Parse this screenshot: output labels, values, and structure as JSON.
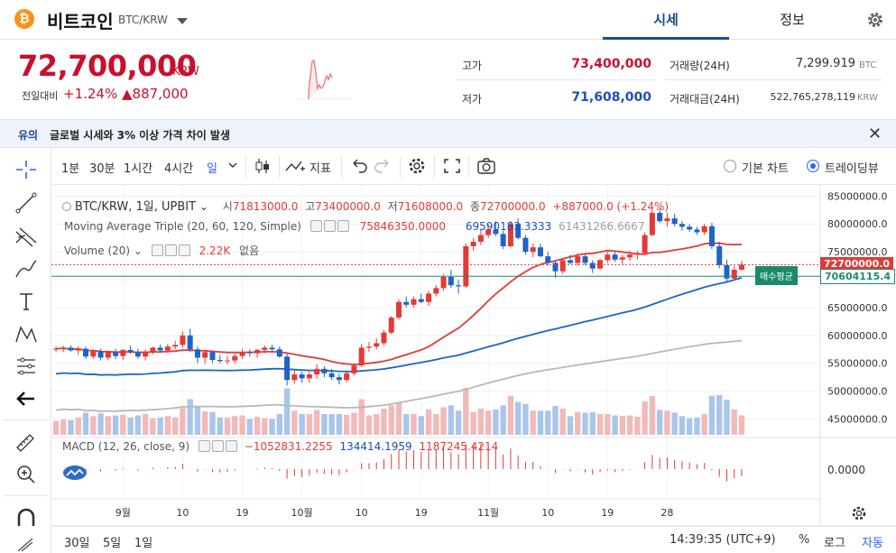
{
  "header": {
    "coin_symbol": "₿",
    "coin_name": "비트코인",
    "pair": "BTC/KRW",
    "tabs": [
      {
        "label": "시세",
        "active": true
      },
      {
        "label": "정보",
        "active": false
      }
    ]
  },
  "price": {
    "current": "72,700,000",
    "unit": "KRW",
    "change_label": "전일대비",
    "change_pct": "+1.24%",
    "change_abs": "▲887,000"
  },
  "stats": {
    "high_label": "고가",
    "high_value": "73,400,000",
    "low_label": "저가",
    "low_value": "71,608,000",
    "volume_label": "거래량(24H)",
    "volume_value": "7,299.919",
    "volume_unit": "BTC",
    "amount_label": "거래대금(24H)",
    "amount_value": "522,765,278,119",
    "amount_unit": "KRW"
  },
  "notice": {
    "tag": "유의",
    "text": "글로벌 시세와 3% 이상 가격 차이 발생"
  },
  "toolbar": {
    "intervals": [
      "1분",
      "30분",
      "1시간",
      "4시간",
      "일"
    ],
    "active_interval": "일",
    "indicator_label": "지표",
    "chart_modes": [
      {
        "label": "기본 차트",
        "selected": false
      },
      {
        "label": "트레이딩뷰",
        "selected": true
      }
    ]
  },
  "legend": {
    "symbol_line": "BTC/KRW, 1일, UPBIT",
    "o_label": "시",
    "o_value": "71813000.0",
    "h_label": "고",
    "h_value": "73400000.0",
    "l_label": "저",
    "l_value": "71608000.0",
    "c_label": "종",
    "c_value": "72700000.0",
    "change": "+887000.0 (+1.24%)",
    "ma_title": "Moving Average Triple (20, 60, 120, Simple)",
    "ma_values": [
      "75846350.0000",
      "69590183.3333",
      "61431266.6667"
    ],
    "vol_title": "Volume (20)",
    "vol_value": "2.22K",
    "vol_extra": "없음",
    "macd_title": "MACD (12, 26, close, 9)",
    "macd_values": [
      "−1052831.2255",
      "134414.1959",
      "1187245.4214"
    ]
  },
  "price_axis": [
    "85000000.0",
    "80000000.0",
    "75000000.0",
    "70000000.0",
    "65000000.0",
    "60000000.0",
    "55000000.0",
    "50000000.0",
    "45000000.0"
  ],
  "last_price_tag": "72700000.0",
  "avg_price_tag": "70604115.4",
  "buy_avg_label": "매수평균",
  "macd_axis": "0.0000",
  "time_axis": [
    "9월",
    "10",
    "19",
    "10월",
    "10",
    "19",
    "11월",
    "10",
    "19",
    "28"
  ],
  "bottom": {
    "ranges": [
      "30일",
      "5일",
      "1일"
    ],
    "clock": "14:39:35 (UTC+9)",
    "pct": "%",
    "log": "로그",
    "auto": "자동"
  },
  "colors": {
    "up": "#e53935",
    "down": "#1e63c8",
    "ma20": "#e53935",
    "ma60": "#1e63c8",
    "ma120": "#b8b8b8",
    "brand": "#1a4b9b"
  },
  "chart_data": {
    "type": "candlestick",
    "title": "BTC/KRW, 1일, UPBIT",
    "x_labels": [
      "9월",
      "10",
      "19",
      "10월",
      "10",
      "19",
      "11월",
      "10",
      "19",
      "28"
    ],
    "ylim": [
      42000000,
      87000000
    ],
    "candles_ohlc_millions": [
      [
        57.5,
        58.0,
        57.0,
        57.6
      ],
      [
        57.6,
        58.2,
        57.0,
        57.8
      ],
      [
        57.8,
        58.2,
        57.1,
        57.3
      ],
      [
        57.3,
        58.0,
        56.5,
        57.6
      ],
      [
        57.6,
        58.0,
        55.8,
        56.2
      ],
      [
        56.2,
        57.5,
        55.8,
        57.2
      ],
      [
        57.2,
        57.6,
        55.5,
        56.0
      ],
      [
        56.0,
        57.3,
        55.6,
        57.0
      ],
      [
        57.0,
        57.6,
        55.8,
        56.3
      ],
      [
        56.3,
        57.5,
        55.6,
        57.4
      ],
      [
        57.4,
        58.2,
        56.7,
        57.0
      ],
      [
        57.0,
        57.6,
        55.8,
        56.2
      ],
      [
        56.2,
        57.5,
        55.5,
        57.1
      ],
      [
        57.1,
        58.0,
        56.6,
        57.8
      ],
      [
        57.8,
        58.4,
        56.9,
        57.3
      ],
      [
        57.3,
        58.5,
        56.8,
        58.0
      ],
      [
        58.0,
        59.0,
        57.5,
        58.3
      ],
      [
        58.3,
        60.7,
        57.8,
        60.0
      ],
      [
        60.0,
        61.2,
        57.0,
        57.5
      ],
      [
        57.5,
        58.0,
        55.0,
        56.0
      ],
      [
        56.0,
        57.3,
        54.9,
        57.0
      ],
      [
        57.0,
        57.3,
        55.0,
        55.6
      ],
      [
        55.6,
        56.5,
        55.0,
        55.4
      ],
      [
        55.4,
        56.3,
        54.8,
        55.5
      ],
      [
        55.5,
        56.7,
        55.0,
        56.3
      ],
      [
        56.3,
        57.6,
        55.8,
        57.0
      ],
      [
        57.0,
        57.5,
        56.2,
        56.8
      ],
      [
        56.8,
        57.6,
        56.0,
        57.4
      ],
      [
        57.4,
        58.2,
        56.8,
        57.8
      ],
      [
        57.8,
        58.3,
        57.0,
        57.5
      ],
      [
        57.5,
        58.0,
        56.0,
        56.2
      ],
      [
        56.2,
        56.8,
        51.0,
        52.0
      ],
      [
        52.0,
        53.8,
        51.3,
        53.0
      ],
      [
        53.0,
        53.5,
        51.5,
        52.3
      ],
      [
        52.3,
        53.5,
        51.5,
        53.0
      ],
      [
        53.0,
        54.8,
        52.2,
        54.0
      ],
      [
        54.0,
        54.5,
        52.5,
        53.2
      ],
      [
        53.2,
        54.0,
        52.0,
        52.5
      ],
      [
        52.5,
        53.2,
        51.2,
        52.0
      ],
      [
        52.0,
        53.5,
        51.6,
        53.2
      ],
      [
        53.2,
        55.0,
        52.8,
        54.6
      ],
      [
        54.6,
        58.5,
        54.3,
        57.8
      ],
      [
        57.8,
        58.8,
        57.0,
        58.0
      ],
      [
        58.0,
        59.5,
        57.5,
        58.6
      ],
      [
        58.6,
        61.0,
        58.2,
        60.5
      ],
      [
        60.5,
        63.5,
        60.2,
        63.2
      ],
      [
        63.2,
        66.5,
        62.8,
        66.0
      ],
      [
        66.0,
        67.0,
        65.0,
        65.5
      ],
      [
        65.5,
        67.0,
        65.0,
        66.5
      ],
      [
        66.5,
        67.5,
        65.8,
        66.0
      ],
      [
        66.0,
        68.0,
        65.3,
        67.5
      ],
      [
        67.5,
        69.0,
        67.0,
        68.5
      ],
      [
        68.5,
        71.0,
        68.0,
        70.5
      ],
      [
        70.5,
        71.8,
        68.5,
        69.0
      ],
      [
        69.0,
        70.0,
        67.5,
        68.8
      ],
      [
        68.8,
        76.5,
        68.5,
        76.0
      ],
      [
        76.0,
        77.5,
        75.2,
        76.8
      ],
      [
        76.8,
        79.0,
        76.2,
        78.0
      ],
      [
        78.0,
        80.0,
        77.5,
        79.0
      ],
      [
        79.0,
        80.5,
        77.8,
        78.2
      ],
      [
        78.2,
        78.8,
        75.5,
        76.0
      ],
      [
        76.0,
        80.5,
        75.8,
        80.0
      ],
      [
        80.0,
        81.0,
        77.2,
        77.5
      ],
      [
        77.5,
        78.0,
        74.5,
        75.0
      ],
      [
        75.0,
        76.5,
        74.0,
        75.8
      ],
      [
        75.8,
        76.5,
        74.0,
        74.2
      ],
      [
        74.2,
        75.0,
        72.5,
        73.0
      ],
      [
        73.0,
        73.5,
        70.3,
        71.5
      ],
      [
        71.5,
        73.8,
        71.0,
        73.5
      ],
      [
        73.5,
        74.5,
        72.8,
        73.0
      ],
      [
        73.0,
        74.8,
        72.5,
        74.2
      ],
      [
        74.2,
        74.8,
        72.6,
        73.0
      ],
      [
        73.0,
        73.5,
        71.2,
        72.0
      ],
      [
        72.0,
        73.8,
        71.8,
        73.5
      ],
      [
        73.5,
        75.0,
        73.0,
        74.5
      ],
      [
        74.5,
        75.0,
        73.2,
        73.6
      ],
      [
        73.6,
        74.5,
        72.8,
        74.0
      ],
      [
        74.0,
        75.2,
        73.4,
        74.5
      ],
      [
        74.5,
        75.2,
        73.6,
        74.8
      ],
      [
        74.8,
        78.5,
        74.6,
        78.0
      ],
      [
        78.0,
        82.5,
        77.8,
        82.0
      ],
      [
        82.0,
        82.8,
        80.2,
        80.5
      ],
      [
        80.5,
        82.0,
        79.5,
        81.0
      ],
      [
        81.0,
        81.8,
        79.6,
        80.0
      ],
      [
        80.0,
        80.5,
        78.8,
        79.5
      ],
      [
        79.5,
        80.0,
        78.6,
        79.0
      ],
      [
        79.0,
        79.5,
        78.0,
        78.5
      ],
      [
        78.5,
        80.0,
        78.0,
        79.6
      ],
      [
        79.6,
        80.2,
        75.5,
        76.0
      ],
      [
        76.0,
        76.8,
        72.0,
        72.6
      ],
      [
        72.6,
        73.6,
        69.5,
        70.2
      ],
      [
        70.2,
        72.5,
        69.8,
        71.8
      ],
      [
        71.8,
        73.4,
        71.6,
        72.7
      ]
    ],
    "series": [
      {
        "name": "MA20",
        "value": 75846350
      },
      {
        "name": "MA60",
        "value": 69590183.3333
      },
      {
        "name": "MA120",
        "value": 61431266.6667
      }
    ],
    "volume_last": "2.22K",
    "macd": {
      "macd": -1052831.2255,
      "signal": 134414.1959,
      "hist": 1187245.4214
    }
  }
}
